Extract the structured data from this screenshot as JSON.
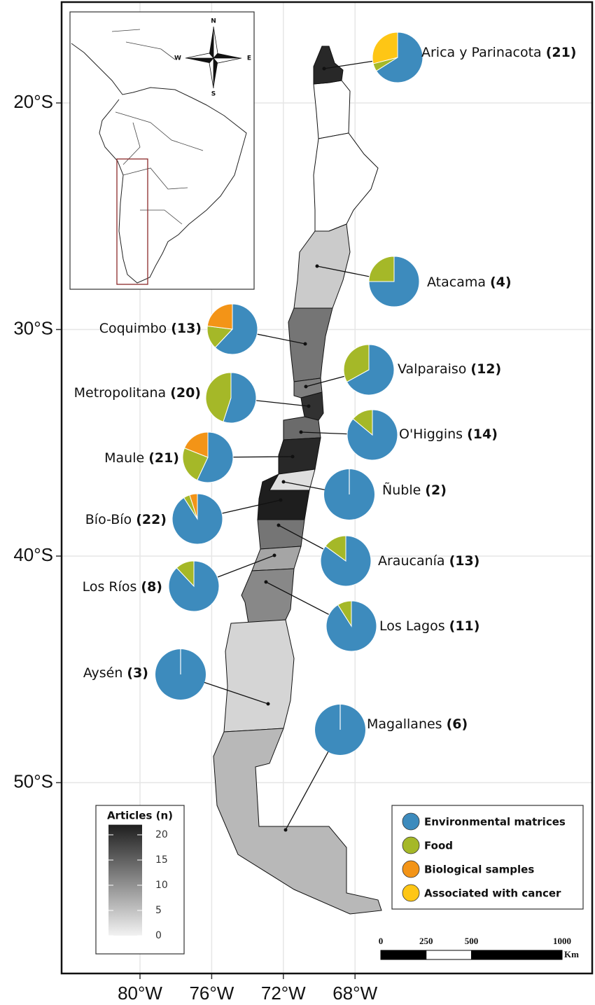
{
  "map": {
    "xticks": [
      {
        "value": -80,
        "label": "80°W"
      },
      {
        "value": -76,
        "label": "76°W"
      },
      {
        "value": -72,
        "label": "72°W"
      },
      {
        "value": -68,
        "label": "68°W"
      }
    ],
    "yticks": [
      {
        "value": -20,
        "label": "20°S"
      },
      {
        "value": -30,
        "label": "30°S"
      },
      {
        "value": -40,
        "label": "40°S"
      },
      {
        "value": -50,
        "label": "50°S"
      }
    ],
    "inset": {
      "compass": {
        "n": "N",
        "s": "S",
        "e": "E",
        "w": "W"
      }
    },
    "legend": {
      "series": [
        {
          "name": "Environmental matrices",
          "color": "#3d8bbd"
        },
        {
          "name": "Food",
          "color": "#a5b828"
        },
        {
          "name": "Biological samples",
          "color": "#f39417"
        },
        {
          "name": "Associated with cancer",
          "color": "#fec615"
        }
      ]
    },
    "shade_legend": {
      "title": "Articles (n)",
      "ticks": [
        0,
        5,
        10,
        15,
        20
      ]
    },
    "scale_bar": {
      "ticks": [
        0,
        250,
        500,
        1000
      ],
      "unit": "Km"
    },
    "regions": [
      {
        "name": "Arica y Parinacota",
        "articles": 21,
        "articles_label": "(21)",
        "shares": [
          66,
          5,
          0,
          29
        ]
      },
      {
        "name": "Atacama",
        "articles": 4,
        "articles_label": "(4)",
        "shares": [
          75,
          25,
          0,
          0
        ]
      },
      {
        "name": "Coquimbo",
        "articles": 13,
        "articles_label": "(13)",
        "shares": [
          62,
          15,
          23,
          0
        ]
      },
      {
        "name": "Valparaiso",
        "articles": 12,
        "articles_label": "(12)",
        "shares": [
          67,
          33,
          0,
          0
        ]
      },
      {
        "name": "Metropolitana",
        "articles": 20,
        "articles_label": "(20)",
        "shares": [
          55,
          45,
          0,
          0
        ]
      },
      {
        "name": "O'Higgins",
        "articles": 14,
        "articles_label": "(14)",
        "shares": [
          86,
          14,
          0,
          0
        ]
      },
      {
        "name": "Maule",
        "articles": 21,
        "articles_label": "(21)",
        "shares": [
          57,
          24,
          19,
          0
        ]
      },
      {
        "name": "Ñuble",
        "articles": 2,
        "articles_label": "(2)",
        "shares": [
          100,
          0,
          0,
          0
        ]
      },
      {
        "name": "Bío-Bío",
        "articles": 22,
        "articles_label": "(22)",
        "shares": [
          91,
          4,
          5,
          0
        ]
      },
      {
        "name": "Araucanía",
        "articles": 13,
        "articles_label": "(13)",
        "shares": [
          85,
          15,
          0,
          0
        ]
      },
      {
        "name": "Los Ríos",
        "articles": 8,
        "articles_label": "(8)",
        "shares": [
          88,
          12,
          0,
          0
        ]
      },
      {
        "name": "Los Lagos",
        "articles": 11,
        "articles_label": "(11)",
        "shares": [
          91,
          9,
          0,
          0
        ]
      },
      {
        "name": "Aysén",
        "articles": 3,
        "articles_label": "(3)",
        "shares": [
          100,
          0,
          0,
          0
        ]
      },
      {
        "name": "Magallanes",
        "articles": 6,
        "articles_label": "(6)",
        "shares": [
          100,
          0,
          0,
          0
        ]
      }
    ]
  }
}
